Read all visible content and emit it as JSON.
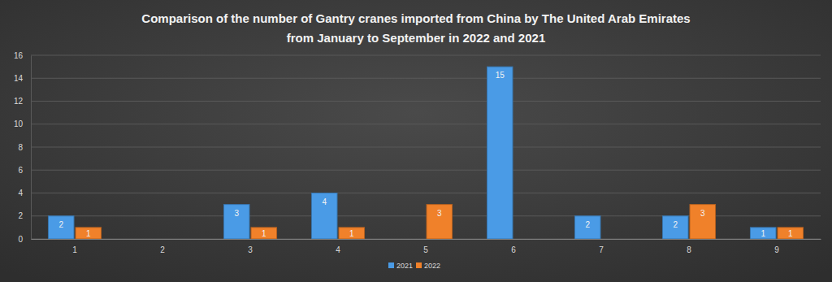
{
  "chart_data": {
    "type": "bar",
    "title": "Comparison of the number of Gantry cranes imported from China by The United Arab Emirates\nfrom January to September in 2022 and 2021",
    "categories": [
      "1",
      "2",
      "3",
      "4",
      "5",
      "6",
      "7",
      "8",
      "9"
    ],
    "series": [
      {
        "name": "2021",
        "color": "#4a9be6",
        "values": [
          2,
          null,
          3,
          4,
          null,
          15,
          2,
          2,
          1
        ]
      },
      {
        "name": "2022",
        "color": "#f0812a",
        "values": [
          1,
          null,
          1,
          1,
          3,
          null,
          null,
          3,
          1
        ]
      }
    ],
    "ylim": [
      0,
      16
    ],
    "yticks": [
      0,
      2,
      4,
      6,
      8,
      10,
      12,
      14,
      16
    ],
    "grid": true,
    "legend": "bottom",
    "data_labels": true
  }
}
